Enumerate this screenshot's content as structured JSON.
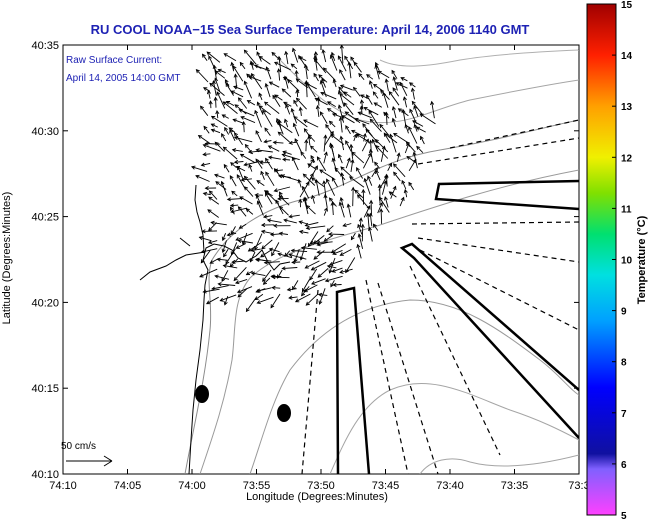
{
  "chart_data": {
    "type": "quiver-map",
    "title": "RU COOL  NOAA−15  Sea Surface Temperature:  April 14, 2006 1140 GMT",
    "xlabel": "Longitude (Degrees:Minutes)",
    "ylabel": "Latitude (Degrees:Minutes)",
    "x_ticks": [
      "74:10",
      "74:05",
      "74:00",
      "73:55",
      "73:50",
      "73:45",
      "73:40",
      "73:35",
      "73:3"
    ],
    "y_ticks": [
      "40:35",
      "40:30",
      "40:25",
      "40:20",
      "40:15",
      "40:10"
    ],
    "xlim_minutes_west": [
      10,
      30
    ],
    "ylim_minutes": [
      10,
      35
    ],
    "annotation": [
      "Raw Surface Current:",
      "April 14, 2005 14:00 GMT"
    ],
    "scale_label": "50 cm/s",
    "colorbar": {
      "label": "Temperature (°C)",
      "min": 5,
      "max": 15,
      "ticks": [
        "5",
        "6",
        "7",
        "8",
        "9",
        "10",
        "11",
        "12",
        "13",
        "14",
        "15"
      ],
      "colors": [
        "#ff40ff",
        "#1010a0",
        "#0000ff",
        "#00a0ff",
        "#00e0e0",
        "#00e070",
        "#80e000",
        "#f0f000",
        "#ffa000",
        "#ff2000",
        "#a00000"
      ]
    },
    "markers": [
      {
        "lon": "74:00.2",
        "lat": "40:14.7"
      },
      {
        "lon": "73:55.6",
        "lat": "40:13.5"
      }
    ]
  }
}
